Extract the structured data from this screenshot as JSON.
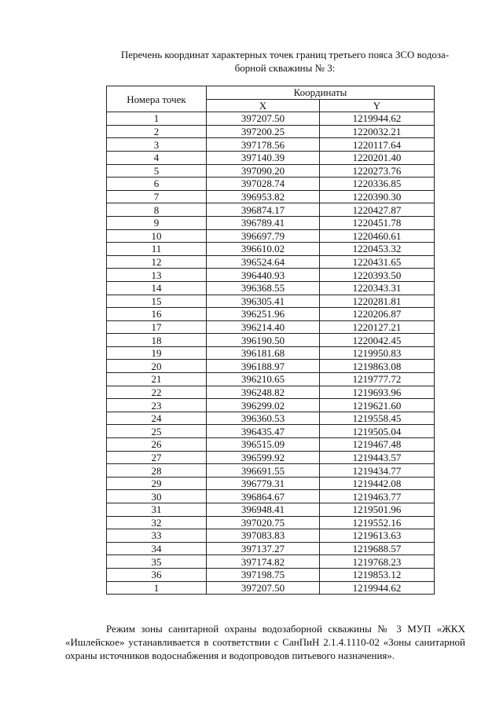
{
  "title": {
    "line1": "Перечень координат характерных точек границ третьего пояса ЗСО водоза-",
    "line2": "борной скважины № 3:"
  },
  "table": {
    "header_points": "Номера точек",
    "header_coords": "Координаты",
    "header_x": "X",
    "header_y": "Y",
    "rows": [
      [
        "1",
        "397207.50",
        "1219944.62"
      ],
      [
        "2",
        "397200.25",
        "1220032.21"
      ],
      [
        "3",
        "397178.56",
        "1220117.64"
      ],
      [
        "4",
        "397140.39",
        "1220201.40"
      ],
      [
        "5",
        "397090.20",
        "1220273.76"
      ],
      [
        "6",
        "397028.74",
        "1220336.85"
      ],
      [
        "7",
        "396953.82",
        "1220390.30"
      ],
      [
        "8",
        "396874.17",
        "1220427.87"
      ],
      [
        "9",
        "396789.41",
        "1220451.78"
      ],
      [
        "10",
        "396697.79",
        "1220460.61"
      ],
      [
        "11",
        "396610.02",
        "1220453.32"
      ],
      [
        "12",
        "396524.64",
        "1220431.65"
      ],
      [
        "13",
        "396440.93",
        "1220393.50"
      ],
      [
        "14",
        "396368.55",
        "1220343.31"
      ],
      [
        "15",
        "396305.41",
        "1220281.81"
      ],
      [
        "16",
        "396251.96",
        "1220206.87"
      ],
      [
        "17",
        "396214.40",
        "1220127.21"
      ],
      [
        "18",
        "396190.50",
        "1220042.45"
      ],
      [
        "19",
        "396181.68",
        "1219950.83"
      ],
      [
        "20",
        "396188.97",
        "1219863.08"
      ],
      [
        "21",
        "396210.65",
        "1219777.72"
      ],
      [
        "22",
        "396248.82",
        "1219693.96"
      ],
      [
        "23",
        "396299.02",
        "1219621.60"
      ],
      [
        "24",
        "396360.53",
        "1219558.45"
      ],
      [
        "25",
        "396435.47",
        "1219505.04"
      ],
      [
        "26",
        "396515.09",
        "1219467.48"
      ],
      [
        "27",
        "396599.92",
        "1219443.57"
      ],
      [
        "28",
        "396691.55",
        "1219434.77"
      ],
      [
        "29",
        "396779.31",
        "1219442.08"
      ],
      [
        "30",
        "396864.67",
        "1219463.77"
      ],
      [
        "31",
        "396948.41",
        "1219501.96"
      ],
      [
        "32",
        "397020.75",
        "1219552.16"
      ],
      [
        "33",
        "397083.83",
        "1219613.63"
      ],
      [
        "34",
        "397137.27",
        "1219688.57"
      ],
      [
        "35",
        "397174.82",
        "1219768.23"
      ],
      [
        "36",
        "397198.75",
        "1219853.12"
      ],
      [
        "1",
        "397207.50",
        "1219944.62"
      ]
    ]
  },
  "paragraph": "Режим зоны санитарной охраны водозаборной скважины № 3 МУП «ЖКХ «Ишлейское» устанавливается в соответствии с СанПиН 2.1.4.1110-02 «Зоны санитарной охраны источников водоснабжения и водопроводов питьевого назначения»."
}
